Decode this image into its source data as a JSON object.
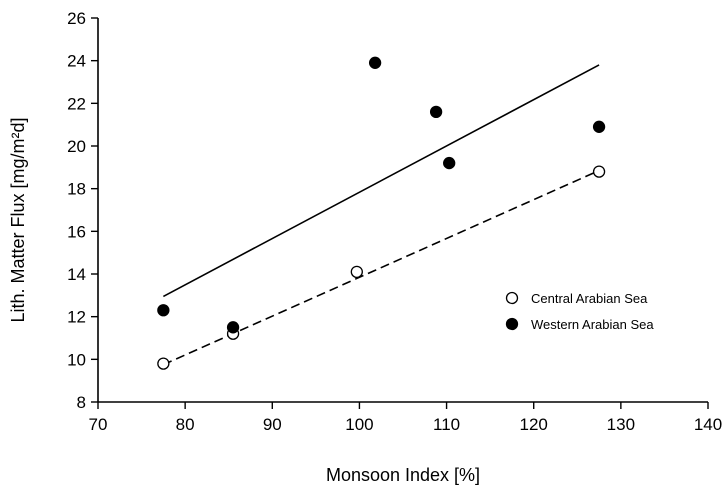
{
  "chart_data": {
    "type": "scatter",
    "title": "",
    "xlabel": "Monsoon Index [%]",
    "ylabel": "Lith. Matter Flux [mg/m²d]",
    "xlim": [
      70,
      140
    ],
    "ylim": [
      8,
      26
    ],
    "xticks": [
      70,
      80,
      90,
      100,
      110,
      120,
      130,
      140
    ],
    "yticks": [
      8,
      10,
      12,
      14,
      16,
      18,
      20,
      22,
      24,
      26
    ],
    "grid": false,
    "legend_position": "lower-right",
    "series": [
      {
        "name": "Central Arabian Sea",
        "marker": "open-circle",
        "points": [
          {
            "x": 77.5,
            "y": 9.8
          },
          {
            "x": 85.5,
            "y": 11.2
          },
          {
            "x": 99.7,
            "y": 14.1
          },
          {
            "x": 127.5,
            "y": 18.8
          }
        ],
        "fit": {
          "style": "dashed",
          "x": [
            77.5,
            127.5
          ],
          "y": [
            9.75,
            18.85
          ]
        }
      },
      {
        "name": "Western Arabian Sea",
        "marker": "filled-circle",
        "points": [
          {
            "x": 77.5,
            "y": 12.3
          },
          {
            "x": 85.5,
            "y": 11.5
          },
          {
            "x": 101.8,
            "y": 23.9
          },
          {
            "x": 108.8,
            "y": 21.6
          },
          {
            "x": 110.3,
            "y": 19.2
          },
          {
            "x": 127.5,
            "y": 20.9
          }
        ],
        "fit": {
          "style": "solid",
          "x": [
            77.5,
            127.5
          ],
          "y": [
            12.95,
            23.8
          ]
        }
      }
    ]
  },
  "colors": {
    "ink": "#000000",
    "background": "#ffffff"
  }
}
